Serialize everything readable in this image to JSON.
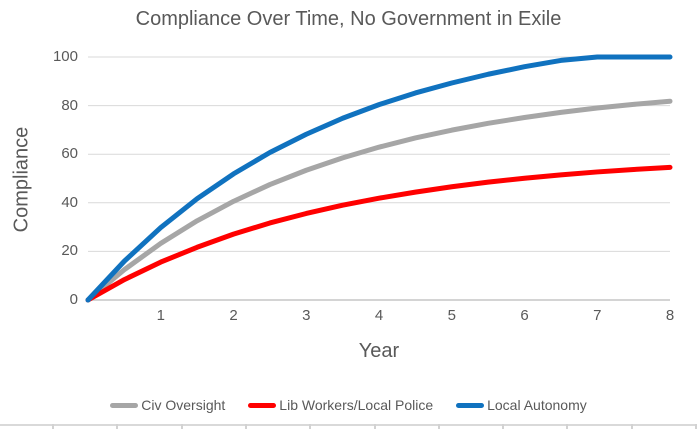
{
  "chart_data": {
    "type": "line",
    "title": "Compliance Over Time, No Government in Exile",
    "xlabel": "Year",
    "ylabel": "Compliance",
    "xlim": [
      0,
      8
    ],
    "ylim": [
      0,
      100
    ],
    "xticks": [
      1,
      2,
      3,
      4,
      5,
      6,
      7,
      8
    ],
    "yticks": [
      0,
      20,
      40,
      60,
      80,
      100
    ],
    "grid": "horizontal",
    "legend_position": "bottom",
    "x": [
      0,
      0.5,
      1,
      1.5,
      2,
      2.5,
      3,
      3.5,
      4,
      4.5,
      5,
      5.5,
      6,
      6.5,
      7,
      7.5,
      8
    ],
    "series": [
      {
        "name": "Civ Oversight",
        "color": "#a6a6a6",
        "values": [
          0,
          12.5,
          23.3,
          32.6,
          40.6,
          47.5,
          53.4,
          58.5,
          62.9,
          66.7,
          69.9,
          72.7,
          75.1,
          77.2,
          79.0,
          80.5,
          81.8
        ]
      },
      {
        "name": "Lib Workers/Local Police",
        "color": "#ff0000",
        "values": [
          0,
          8.4,
          15.6,
          21.7,
          27.1,
          31.7,
          35.6,
          39.0,
          41.9,
          44.4,
          46.6,
          48.5,
          50.1,
          51.5,
          52.7,
          53.7,
          54.6
        ]
      },
      {
        "name": "Local Autonomy",
        "color": "#1072bf",
        "values": [
          0,
          16.0,
          29.8,
          41.7,
          51.9,
          60.7,
          68.2,
          74.8,
          80.4,
          85.2,
          89.3,
          92.9,
          96.0,
          98.6,
          100,
          100,
          100
        ]
      }
    ],
    "text_color": "#595959",
    "grid_color": "#d9d9d9",
    "axis_color": "#c6c6c6"
  }
}
